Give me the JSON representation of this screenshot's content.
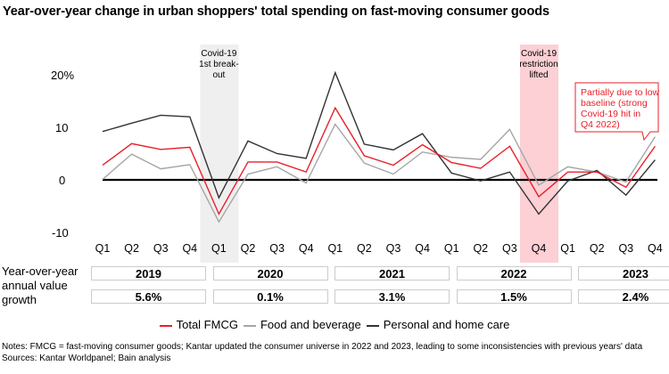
{
  "chart_data": {
    "type": "line",
    "title": "Year-over-year change in urban shoppers' total spending on fast-moving consumer goods",
    "x": [
      "Q1",
      "Q2",
      "Q3",
      "Q4",
      "Q1",
      "Q2",
      "Q3",
      "Q4",
      "Q1",
      "Q2",
      "Q3",
      "Q4",
      "Q1",
      "Q2",
      "Q3",
      "Q4",
      "Q1",
      "Q2",
      "Q3",
      "Q4"
    ],
    "ytick_labels": [
      "20%",
      "10",
      "0",
      "-10"
    ],
    "yticks": [
      20,
      10,
      0,
      -10
    ],
    "ylim": [
      -10.5,
      22
    ],
    "grid": false,
    "legend_placement": "bottom",
    "series": [
      {
        "name": "Total FMCG",
        "color": "#e8202a",
        "values": [
          2.8,
          6.9,
          5.8,
          6.2,
          -6.5,
          3.4,
          3.4,
          1.5,
          13.7,
          4.6,
          2.8,
          6.7,
          3.3,
          2.2,
          6.4,
          -3.2,
          1.5,
          1.5,
          -1.4,
          6.4
        ]
      },
      {
        "name": "Food and beverage",
        "color": "#a6a6a6",
        "values": [
          0.1,
          4.9,
          2.1,
          2.9,
          -8.0,
          1.1,
          2.5,
          -0.6,
          10.6,
          3.2,
          1.1,
          5.3,
          4.3,
          3.9,
          9.6,
          -1.0,
          2.5,
          1.5,
          -0.4,
          8.2
        ]
      },
      {
        "name": "Personal and home care",
        "color": "#333333",
        "values": [
          9.2,
          10.8,
          12.3,
          12.0,
          -3.4,
          7.4,
          5.0,
          4.1,
          20.4,
          6.8,
          5.7,
          8.8,
          1.3,
          -0.2,
          1.5,
          -6.5,
          -0.2,
          1.8,
          -2.9,
          3.8
        ]
      }
    ],
    "highlights": [
      {
        "quarter_index": 4,
        "label": [
          "Covid-19",
          "1st break-",
          "out"
        ],
        "color": "#efefef"
      },
      {
        "quarter_index": 15,
        "label": [
          "Covid-19",
          "restriction",
          "lifted"
        ],
        "color": "#fcd0d4"
      }
    ],
    "annotation": {
      "lines": [
        "Partially due to low",
        "baseline (strong",
        "Covid-19 hit in",
        "Q4 2022)"
      ],
      "color": "#e8202a",
      "points_to_index": 19
    },
    "table": {
      "row_label": "Year-over-year annual value growth",
      "years": [
        "2019",
        "2020",
        "2021",
        "2022",
        "2023"
      ],
      "growth": [
        "5.6%",
        "0.1%",
        "3.1%",
        "1.5%",
        "2.4%"
      ]
    }
  },
  "notes": "Notes: FMCG = fast-moving consumer goods; Kantar updated the consumer universe in 2022 and 2023, leading to some inconsistencies with previous years' data",
  "sources": "Sources: Kantar Worldpanel; Bain analysis"
}
